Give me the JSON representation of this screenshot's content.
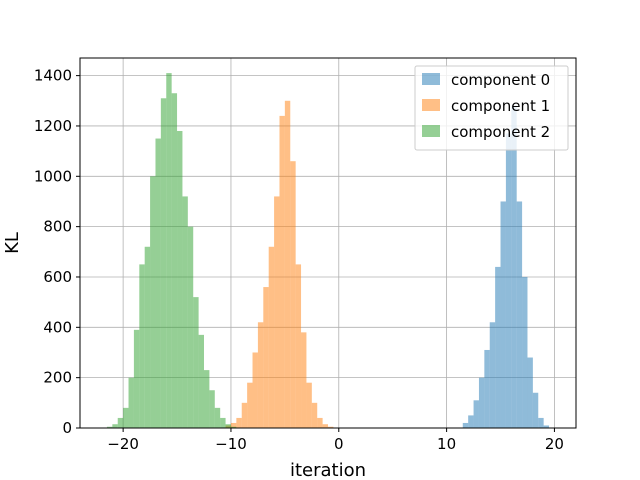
{
  "chart_data": {
    "type": "bar",
    "title": "",
    "xlabel": "iteration",
    "ylabel": "KL",
    "xlim": [
      -24,
      22
    ],
    "ylim": [
      0,
      1470
    ],
    "grid": true,
    "legend_position": "top-right",
    "x_ticks": [
      -20,
      -10,
      0,
      10,
      20
    ],
    "x_tick_labels": [
      "−20",
      "−10",
      "0",
      "10",
      "20"
    ],
    "y_ticks": [
      0,
      200,
      400,
      600,
      800,
      1000,
      1200,
      1400
    ],
    "y_tick_labels": [
      "0",
      "200",
      "400",
      "600",
      "800",
      "1000",
      "1200",
      "1400"
    ],
    "bin_width": 0.5,
    "opacity": 0.5,
    "series": [
      {
        "name": "component 0",
        "color": "#1f77b4",
        "bin_starts": [
          11.5,
          12.0,
          12.5,
          13.0,
          13.5,
          14.0,
          14.5,
          15.0,
          15.5,
          16.0,
          16.5,
          17.0,
          17.5,
          18.0,
          18.5,
          19.0
        ],
        "counts": [
          20,
          50,
          110,
          200,
          310,
          420,
          640,
          900,
          1170,
          1280,
          900,
          600,
          280,
          140,
          40,
          10
        ]
      },
      {
        "name": "component 1",
        "color": "#ff7f0e",
        "bin_starts": [
          -10.5,
          -10.0,
          -9.5,
          -9.0,
          -8.5,
          -8.0,
          -7.5,
          -7.0,
          -6.5,
          -6.0,
          -5.5,
          -5.0,
          -4.5,
          -4.0,
          -3.5,
          -3.0,
          -2.5,
          -2.0,
          -1.5,
          -1.0
        ],
        "counts": [
          10,
          20,
          40,
          100,
          180,
          300,
          420,
          560,
          720,
          920,
          1240,
          1300,
          1060,
          650,
          380,
          180,
          100,
          40,
          15,
          5
        ]
      },
      {
        "name": "component 2",
        "color": "#2ca02c",
        "bin_starts": [
          -21.5,
          -21.0,
          -20.5,
          -20.0,
          -19.5,
          -19.0,
          -18.5,
          -18.0,
          -17.5,
          -17.0,
          -16.5,
          -16.0,
          -15.5,
          -15.0,
          -14.5,
          -14.0,
          -13.5,
          -13.0,
          -12.5,
          -12.0,
          -11.5,
          -11.0,
          -10.5,
          -10.0
        ],
        "counts": [
          5,
          15,
          40,
          80,
          200,
          390,
          650,
          720,
          1000,
          1150,
          1310,
          1410,
          1330,
          1180,
          920,
          800,
          520,
          370,
          230,
          150,
          80,
          40,
          15,
          5
        ]
      }
    ]
  }
}
